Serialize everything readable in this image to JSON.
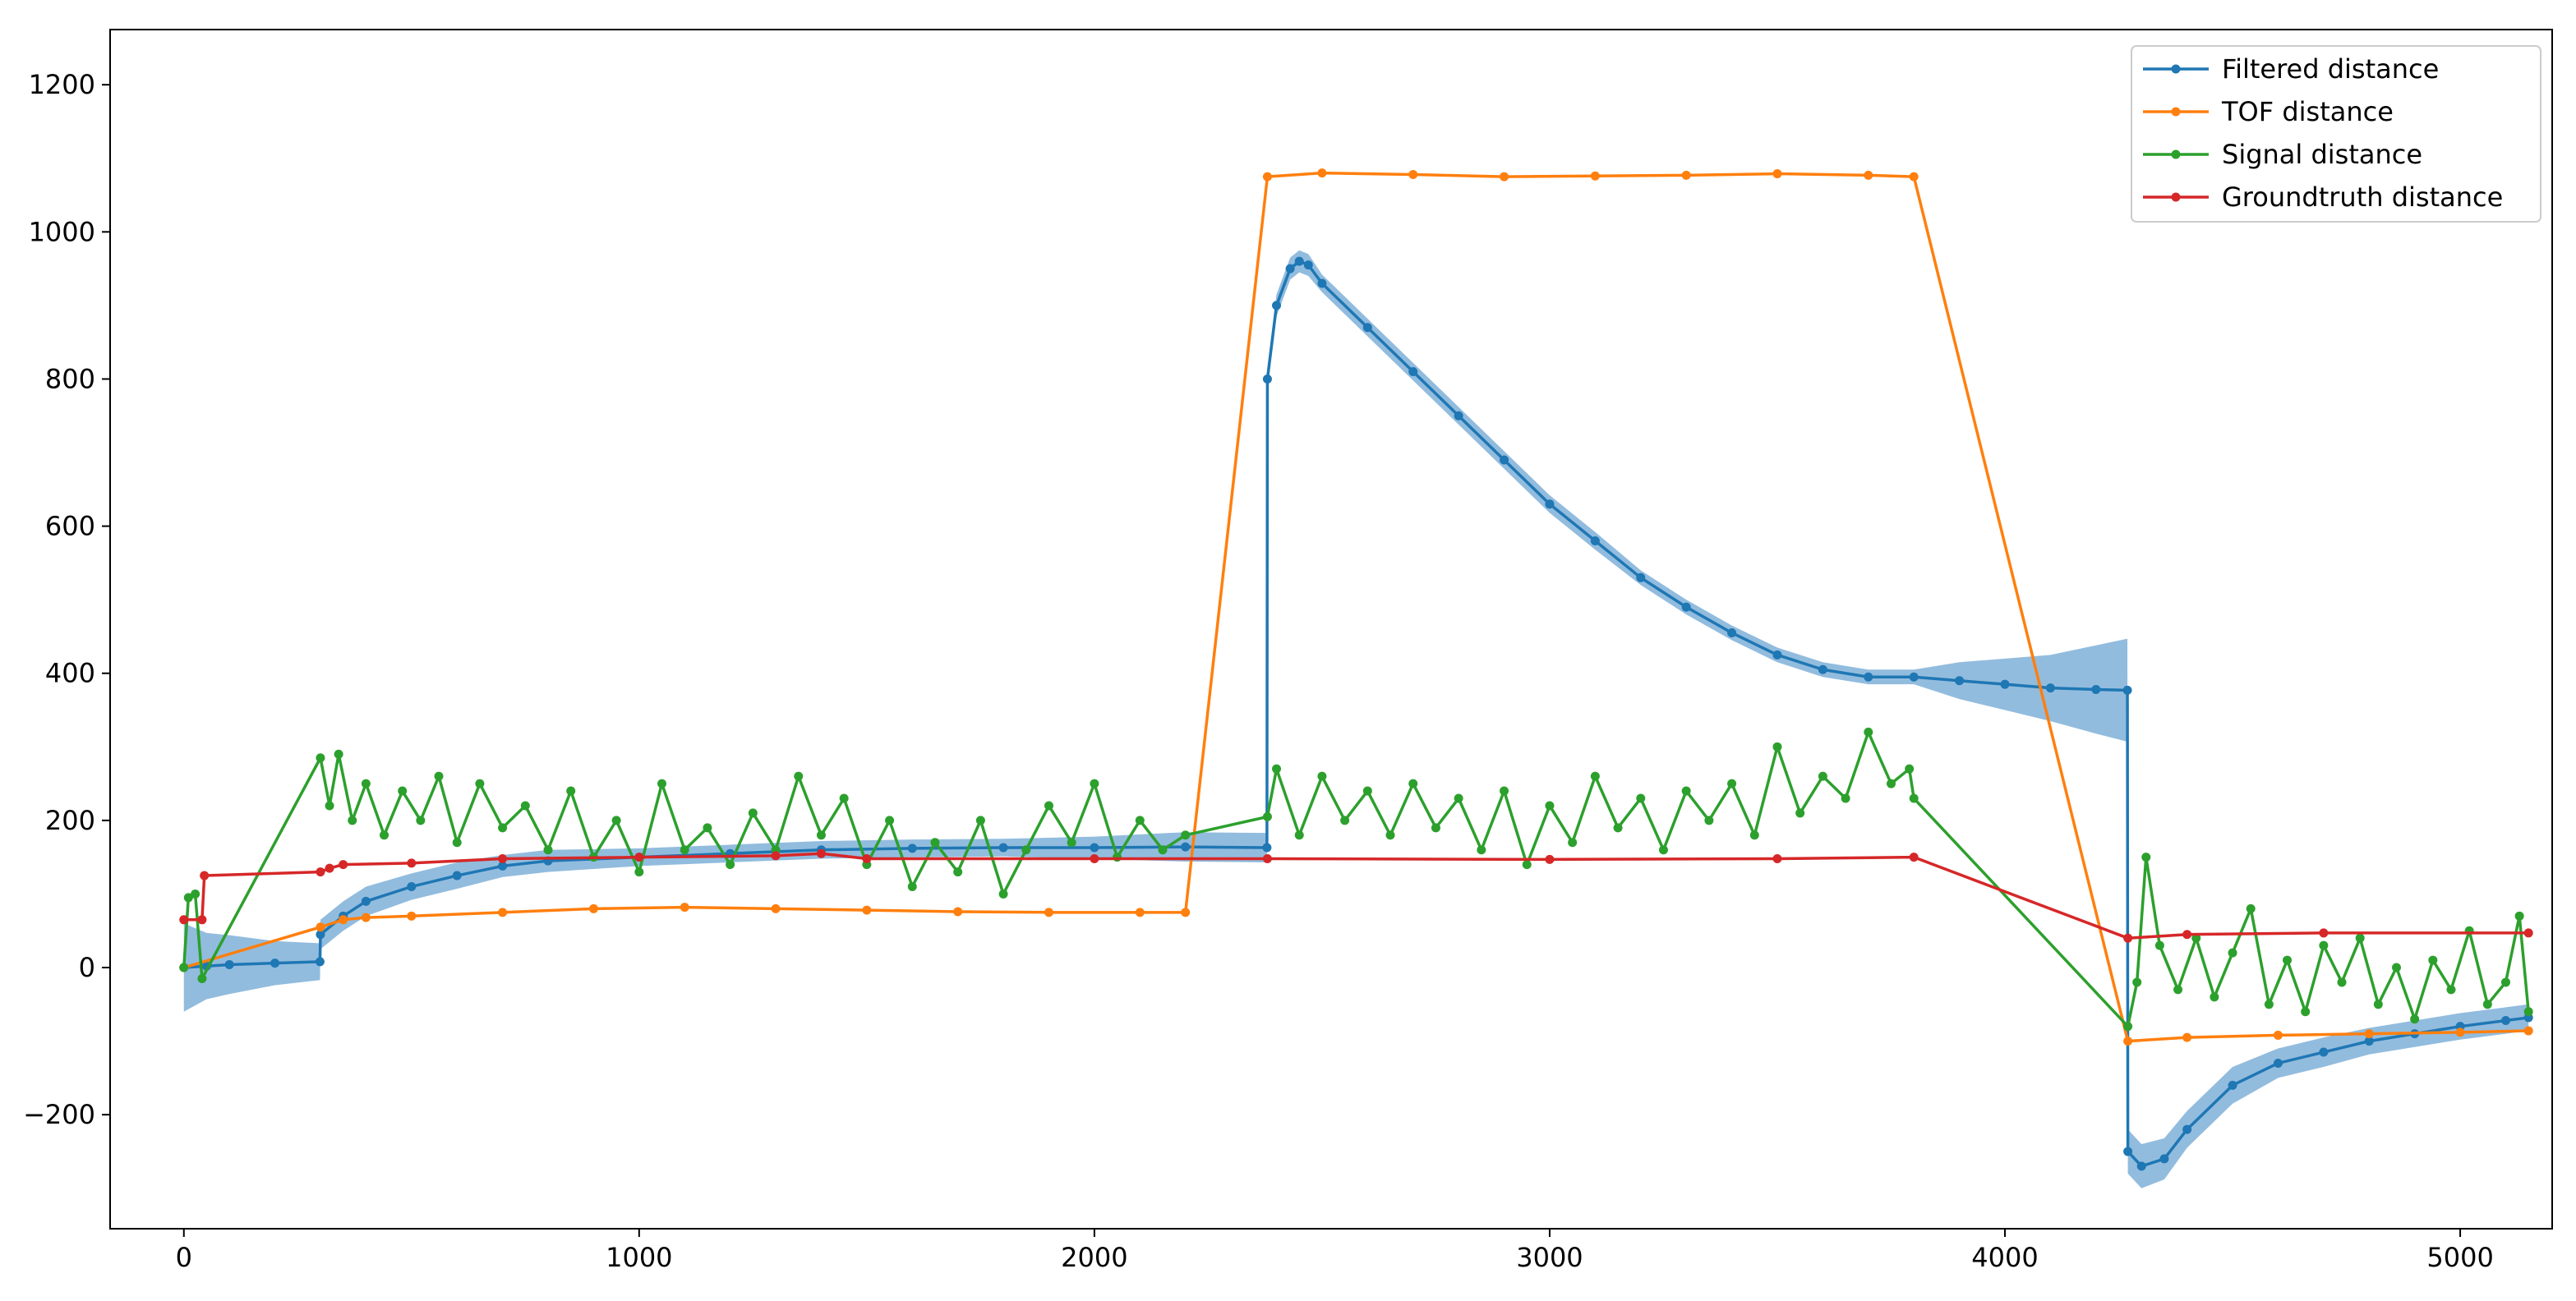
{
  "chart_data": {
    "type": "line",
    "xlim": [
      -162,
      5202
    ],
    "ylim": [
      -355,
      1275
    ],
    "xticks": [
      0,
      1000,
      2000,
      3000,
      4000,
      5000
    ],
    "yticks": [
      {
        "value": -200,
        "label": "−200"
      },
      0,
      200,
      400,
      600,
      800,
      1000,
      1200
    ],
    "grid": false,
    "legend": "upper right",
    "series": [
      {
        "name": "Filtered distance",
        "color": "#1f77b4",
        "band_color": "#7fb0d8",
        "x": [
          0,
          50,
          100,
          200,
          299,
          300,
          350,
          400,
          500,
          600,
          700,
          800,
          1000,
          1200,
          1400,
          1600,
          1800,
          2000,
          2200,
          2379,
          2380,
          2400,
          2430,
          2450,
          2470,
          2500,
          2600,
          2700,
          2800,
          2900,
          3000,
          3100,
          3200,
          3300,
          3400,
          3500,
          3600,
          3700,
          3800,
          3900,
          4000,
          4100,
          4200,
          4269,
          4270,
          4300,
          4350,
          4400,
          4500,
          4600,
          4700,
          4800,
          4900,
          5000,
          5100,
          5150
        ],
        "values": [
          0,
          2,
          4,
          6,
          8,
          45,
          70,
          90,
          110,
          125,
          138,
          145,
          150,
          155,
          160,
          162,
          163,
          163,
          164,
          163,
          800,
          900,
          950,
          960,
          955,
          930,
          870,
          810,
          750,
          690,
          630,
          580,
          530,
          490,
          455,
          425,
          405,
          395,
          395,
          390,
          385,
          380,
          378,
          377,
          -250,
          -270,
          -260,
          -220,
          -160,
          -130,
          -115,
          -100,
          -90,
          -80,
          -72,
          -68
        ],
        "lower": [
          -60,
          -43,
          -36,
          -24,
          -17,
          25,
          50,
          70,
          92,
          107,
          123,
          130,
          138,
          143,
          148,
          150,
          151,
          148,
          144,
          143,
          785,
          885,
          935,
          945,
          940,
          918,
          858,
          798,
          738,
          678,
          618,
          568,
          520,
          480,
          445,
          415,
          395,
          385,
          385,
          365,
          350,
          335,
          318,
          307,
          -280,
          -300,
          -288,
          -245,
          -185,
          -150,
          -135,
          -118,
          -108,
          -98,
          -90,
          -86
        ],
        "upper": [
          60,
          47,
          44,
          36,
          33,
          65,
          90,
          110,
          128,
          143,
          153,
          160,
          162,
          167,
          172,
          174,
          175,
          178,
          184,
          183,
          815,
          915,
          965,
          975,
          970,
          942,
          882,
          822,
          762,
          702,
          642,
          592,
          540,
          500,
          465,
          435,
          415,
          405,
          405,
          415,
          420,
          425,
          438,
          447,
          -220,
          -240,
          -232,
          -195,
          -135,
          -110,
          -95,
          -82,
          -72,
          -62,
          -54,
          -50
        ]
      },
      {
        "name": "TOF distance",
        "color": "#ff7f0e",
        "x": [
          0,
          300,
          350,
          400,
          500,
          700,
          900,
          1100,
          1300,
          1500,
          1700,
          1900,
          2100,
          2200,
          2380,
          2500,
          2700,
          2900,
          3100,
          3300,
          3500,
          3700,
          3800,
          4270,
          4400,
          4600,
          4800,
          5000,
          5150
        ],
        "values": [
          0,
          55,
          65,
          68,
          70,
          75,
          80,
          82,
          80,
          78,
          76,
          75,
          75,
          75,
          1075,
          1080,
          1078,
          1075,
          1076,
          1077,
          1079,
          1077,
          1075,
          -100,
          -95,
          -92,
          -90,
          -88,
          -86
        ]
      },
      {
        "name": "Signal distance",
        "color": "#2ca02c",
        "x": [
          0,
          10,
          25,
          40,
          300,
          320,
          340,
          370,
          400,
          440,
          480,
          520,
          560,
          600,
          650,
          700,
          750,
          800,
          850,
          900,
          950,
          1000,
          1050,
          1100,
          1150,
          1200,
          1250,
          1300,
          1350,
          1400,
          1450,
          1500,
          1550,
          1600,
          1650,
          1700,
          1750,
          1800,
          1850,
          1900,
          1950,
          2000,
          2050,
          2100,
          2150,
          2200,
          2380,
          2400,
          2450,
          2500,
          2550,
          2600,
          2650,
          2700,
          2750,
          2800,
          2850,
          2900,
          2950,
          3000,
          3050,
          3100,
          3150,
          3200,
          3250,
          3300,
          3350,
          3400,
          3450,
          3500,
          3550,
          3600,
          3650,
          3700,
          3750,
          3790,
          3800,
          4270,
          4290,
          4310,
          4340,
          4380,
          4420,
          4460,
          4500,
          4540,
          4580,
          4620,
          4660,
          4700,
          4740,
          4780,
          4820,
          4860,
          4900,
          4940,
          4980,
          5020,
          5060,
          5100,
          5130,
          5150
        ],
        "values": [
          0,
          95,
          100,
          -15,
          285,
          220,
          290,
          200,
          250,
          180,
          240,
          200,
          260,
          170,
          250,
          190,
          220,
          160,
          240,
          150,
          200,
          130,
          250,
          160,
          190,
          140,
          210,
          160,
          260,
          180,
          230,
          140,
          200,
          110,
          170,
          130,
          200,
          100,
          160,
          220,
          170,
          250,
          150,
          200,
          160,
          180,
          205,
          270,
          180,
          260,
          200,
          240,
          180,
          250,
          190,
          230,
          160,
          240,
          140,
          220,
          170,
          260,
          190,
          230,
          160,
          240,
          200,
          250,
          180,
          300,
          210,
          260,
          230,
          320,
          250,
          270,
          230,
          -80,
          -20,
          150,
          30,
          -30,
          40,
          -40,
          20,
          80,
          -50,
          10,
          -60,
          30,
          -20,
          40,
          -50,
          0,
          -70,
          10,
          -30,
          50,
          -50,
          -20,
          70,
          -60
        ]
      },
      {
        "name": "Groundtruth distance",
        "color": "#d62728",
        "x": [
          0,
          40,
          45,
          300,
          320,
          350,
          500,
          700,
          1000,
          1300,
          1400,
          1500,
          2000,
          2380,
          3000,
          3500,
          3800,
          4270,
          4400,
          4700,
          5150
        ],
        "values": [
          65,
          65,
          125,
          130,
          135,
          140,
          142,
          148,
          150,
          152,
          155,
          148,
          148,
          148,
          147,
          148,
          150,
          40,
          45,
          47,
          47
        ]
      }
    ]
  }
}
